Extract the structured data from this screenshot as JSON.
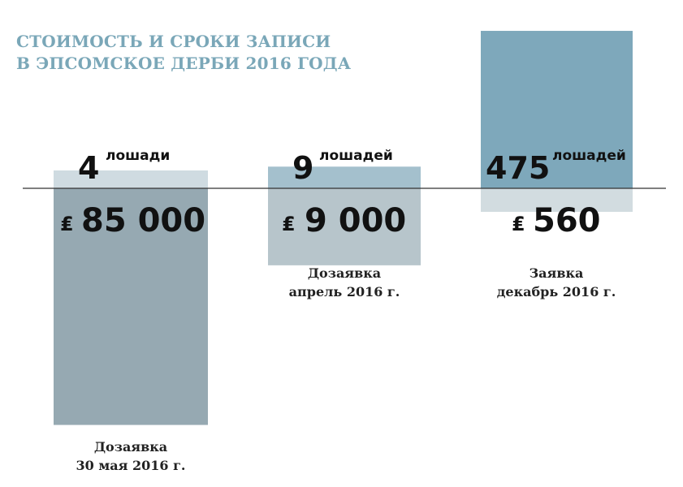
{
  "title_lines": [
    "СТОИМОСТЬ И СРОКИ ЗАПИСИ",
    "В ЭПСОМСКОЕ ДЕРБИ 2016 ГОДА"
  ],
  "colors": {
    "title": "#7aa7b8",
    "baseline": "#333333",
    "horses_bar": [
      "#cfdbe1",
      "#a4c0cd",
      "#7ea8bb"
    ],
    "cost_bar": [
      "#96a9b2",
      "#b7c5cb",
      "#d2dce0"
    ],
    "text": "#111111"
  },
  "chart_data": {
    "type": "bar",
    "categories": [
      "Дозаявка\n30 мая 2016 г.",
      "Дозаявка\nапрель 2016 г.",
      "Заявка\nдекабрь 2016 г."
    ],
    "series": [
      {
        "values": [
          4,
          9,
          475
        ]
      },
      {
        "values": [
          85000,
          9000,
          560
        ]
      }
    ],
    "labels": [
      {
        "horses": "4",
        "horses_unit": "лошади",
        "cost": "85 000"
      },
      {
        "horses": "9",
        "horses_unit": "лошадей",
        "cost": "9 000"
      },
      {
        "horses": "475",
        "horses_unit": "лошадей",
        "cost": "560"
      }
    ],
    "currency_symbol": "₤",
    "title": "СТОИМОСТЬ И СРОКИ ЗАПИСИ В ЭПСОМСКОЕ ДЕРБИ 2016 ГОДА",
    "grid": false,
    "legend": "none"
  }
}
